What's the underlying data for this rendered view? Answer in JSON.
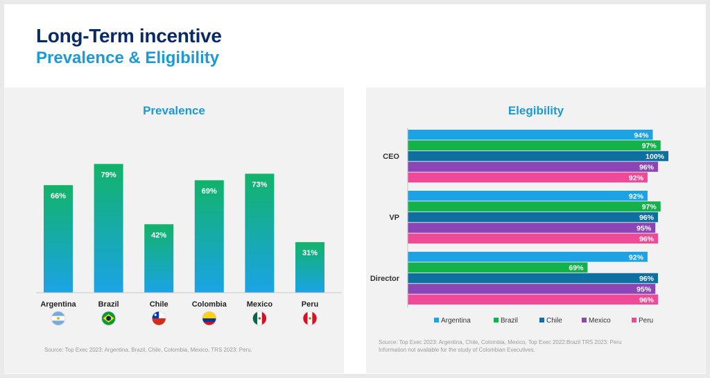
{
  "header": {
    "title": "Long-Term incentive",
    "subtitle": "Prevalence & Eligibility"
  },
  "colors": {
    "navy": "#0a2a66",
    "accent_blue": "#1a9ad6",
    "bar_top": "#12b36a",
    "bar_bottom": "#1ba3e6",
    "argentina": "#1ba3e6",
    "brazil": "#13b14a",
    "chile": "#0f6fa0",
    "mexico": "#8b45b5",
    "peru": "#ee4a97"
  },
  "flags": [
    {
      "icon": "argentina-flag-icon"
    },
    {
      "icon": "brazil-flag-icon"
    },
    {
      "icon": "chile-flag-icon"
    },
    {
      "icon": "colombia-flag-icon"
    },
    {
      "icon": "mexico-flag-icon"
    },
    {
      "icon": "peru-flag-icon"
    }
  ],
  "prevalence": {
    "source": "Source: Top Exec 2023: Argentina, Brazil, Chile, Colombia, Mexico, TRS 2023: Peru."
  },
  "eligibility": {
    "source_line1": "Source: Top Exec 2023: Argentina, Chile, Colombia, Mexico, Top Exec 2022:Brazil TRS 2023: Peru",
    "source_line2": "Information not available for the study of Colombian Executives."
  },
  "chart_data": [
    {
      "type": "bar",
      "title": "Prevalence",
      "categories": [
        "Argentina",
        "Brazil",
        "Chile",
        "Colombia",
        "Mexico",
        "Peru"
      ],
      "values": [
        66,
        79,
        42,
        69,
        73,
        31
      ],
      "value_labels": [
        "66%",
        "79%",
        "42%",
        "69%",
        "73%",
        "31%"
      ],
      "ylim": [
        0,
        100
      ],
      "xlabel": "",
      "ylabel": ""
    },
    {
      "type": "bar",
      "orientation": "horizontal",
      "title": "Elegibility",
      "categories": [
        "CEO",
        "VP",
        "Director"
      ],
      "series": [
        {
          "name": "Argentina",
          "values": [
            94,
            92,
            92
          ],
          "labels": [
            "94%",
            "92%",
            "92%"
          ]
        },
        {
          "name": "Brazil",
          "values": [
            97,
            97,
            69
          ],
          "labels": [
            "97%",
            "97%",
            "69%"
          ]
        },
        {
          "name": "Chile",
          "values": [
            100,
            96,
            96
          ],
          "labels": [
            "100%",
            "96%",
            "96%"
          ]
        },
        {
          "name": "Mexico",
          "values": [
            96,
            95,
            95
          ],
          "labels": [
            "96%",
            "95%",
            "95%"
          ]
        },
        {
          "name": "Peru",
          "values": [
            92,
            96,
            96
          ],
          "labels": [
            "92%",
            "96%",
            "96%"
          ]
        }
      ],
      "xlim": [
        0,
        100
      ],
      "legend": "bottom"
    }
  ]
}
